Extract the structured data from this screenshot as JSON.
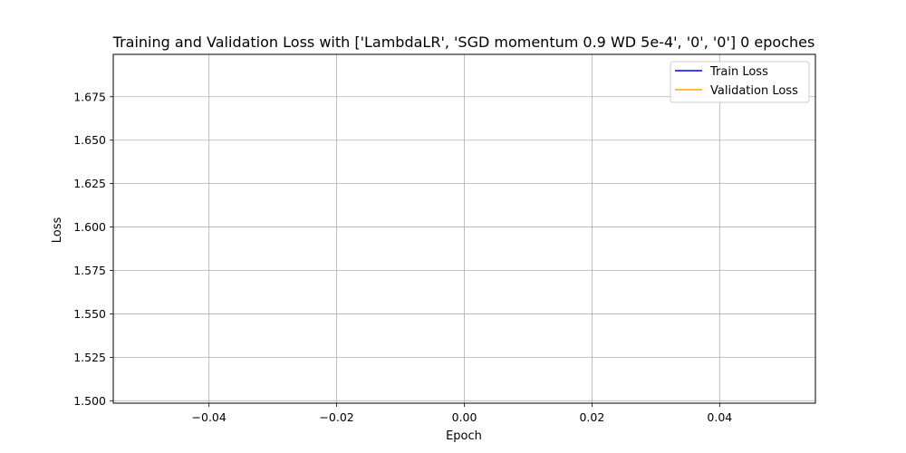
{
  "chart_data": {
    "type": "line",
    "title": "Training and Validation Loss with ['LambdaLR', 'SGD momentum 0.9 WD 5e-4', '0', '0'] 0 epoches",
    "xlabel": "Epoch",
    "ylabel": "Loss",
    "xlim": [
      -0.055,
      0.055
    ],
    "ylim": [
      1.4986,
      1.6994
    ],
    "xticks": [
      -0.04,
      -0.02,
      0.0,
      0.02,
      0.04
    ],
    "xtick_labels": [
      "−0.04",
      "−0.02",
      "0.00",
      "0.02",
      "0.04"
    ],
    "yticks": [
      1.5,
      1.525,
      1.55,
      1.575,
      1.6,
      1.625,
      1.65,
      1.675
    ],
    "ytick_labels": [
      "1.500",
      "1.525",
      "1.550",
      "1.575",
      "1.600",
      "1.625",
      "1.650",
      "1.675"
    ],
    "grid": true,
    "legend_position": "top-right",
    "series": [
      {
        "name": "Train Loss",
        "color": "#0000ff",
        "x": [],
        "y": []
      },
      {
        "name": "Validation Loss",
        "color": "#ffa500",
        "x": [],
        "y": []
      }
    ]
  }
}
